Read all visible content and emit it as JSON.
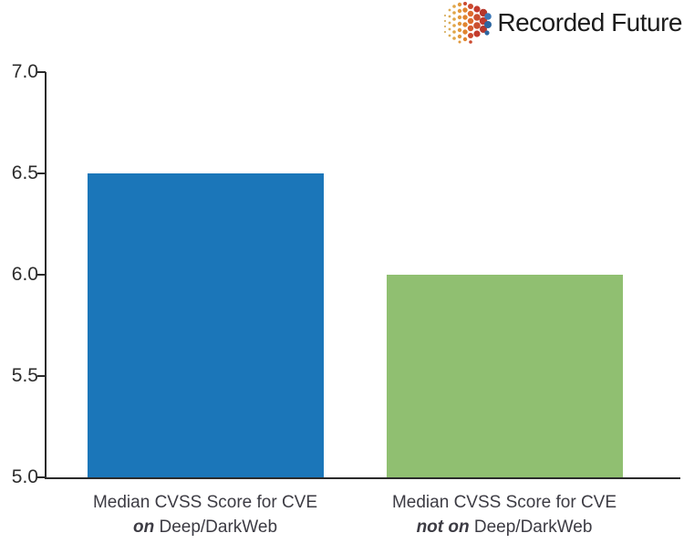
{
  "logo": {
    "text": "Recorded Future"
  },
  "chart_data": {
    "type": "bar",
    "title": "",
    "xlabel": "",
    "ylabel": "",
    "categories": [
      {
        "line1": "Median CVSS Score for CVE",
        "emphasis": "on",
        "rest": " Deep/DarkWeb"
      },
      {
        "line1": "Median CVSS Score for CVE",
        "emphasis": "not on",
        "rest": " Deep/DarkWeb"
      }
    ],
    "values": [
      6.5,
      6.0
    ],
    "bar_colors": [
      "#1b76b9",
      "#90bf71"
    ],
    "ylim": [
      5.0,
      7.0
    ],
    "yticks": [
      "5.0",
      "5.5",
      "6.0",
      "6.5",
      "7.0"
    ],
    "grid": false,
    "legend_position": "none"
  },
  "colors": {
    "axis": "#2b2b2b",
    "tick_text": "#2d2d2d",
    "label_text": "#3c3b43"
  }
}
